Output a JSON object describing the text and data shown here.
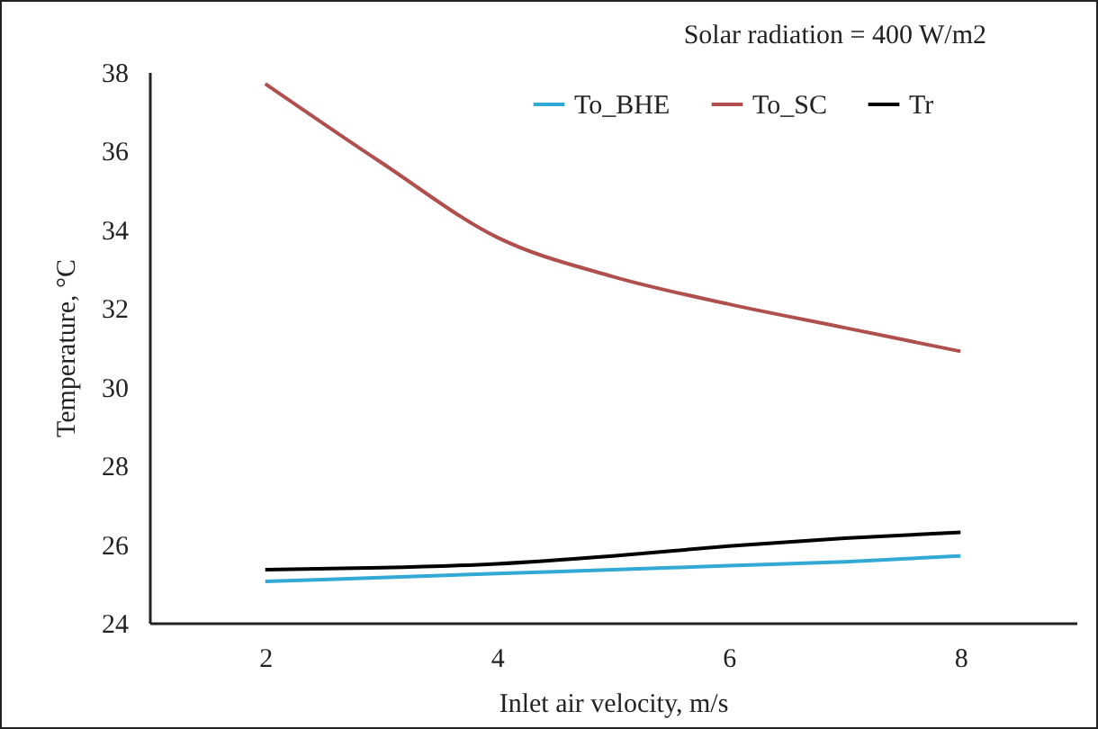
{
  "chart_data": {
    "type": "line",
    "title": "Solar radiation = 400 W/m2",
    "xlabel": "Inlet air velocity, m/s",
    "ylabel": "Temperature, °C",
    "x": [
      2,
      3,
      4,
      5,
      6,
      7,
      8
    ],
    "series": [
      {
        "name": "To_BHE",
        "color": "#31a9d4",
        "values": [
          25.05,
          25.15,
          25.25,
          25.35,
          25.45,
          25.55,
          25.7
        ]
      },
      {
        "name": "To_SC",
        "color": "#b0504e",
        "values": [
          37.7,
          35.7,
          33.8,
          32.8,
          32.1,
          31.5,
          30.9
        ]
      },
      {
        "name": "Tr",
        "color": "#000000",
        "values": [
          25.35,
          25.4,
          25.5,
          25.7,
          25.95,
          26.15,
          26.3
        ]
      }
    ],
    "xlim": [
      1,
      9
    ],
    "xticks": [
      2,
      4,
      6,
      8
    ],
    "ylim": [
      24,
      38
    ],
    "yticks": [
      24,
      26,
      28,
      30,
      32,
      34,
      36,
      38
    ],
    "grid": false,
    "legend": "top right",
    "marker": "none",
    "line_style": "solid"
  }
}
